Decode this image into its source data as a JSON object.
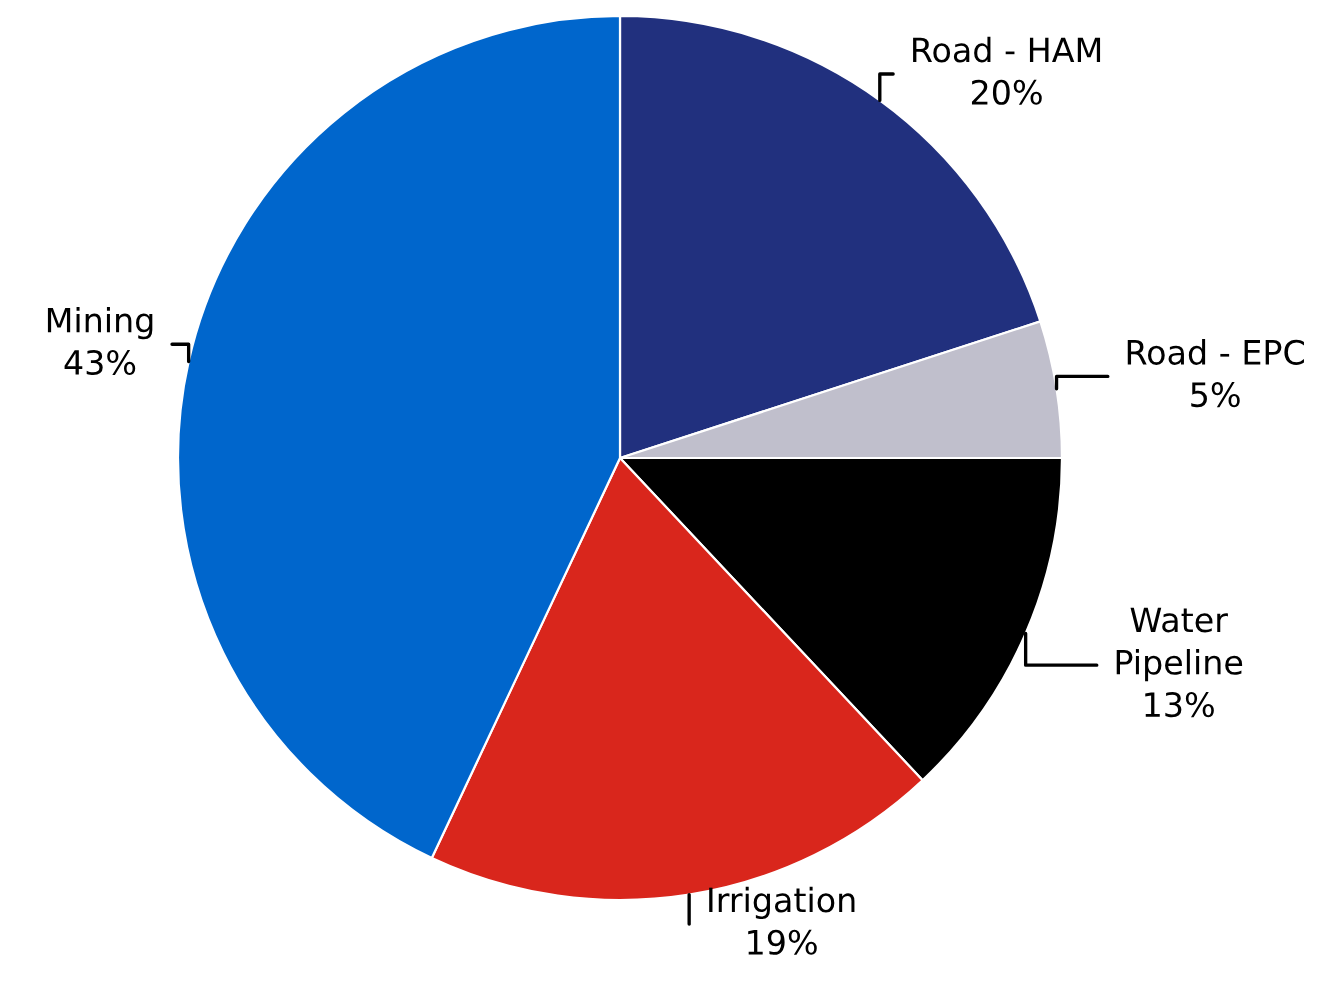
{
  "chart_data": {
    "type": "pie",
    "categories": [
      "Road - HAM",
      "Road - EPC",
      "Water\nPipeline",
      "Irrigation",
      "Mining"
    ],
    "values": [
      20,
      5,
      13,
      19,
      43
    ],
    "colors": [
      "#21307e",
      "#c0bfcc",
      "#000000",
      "#d9261c",
      "#0066cc"
    ],
    "value_labels": [
      "20%",
      "5%",
      "13%",
      "19%",
      "43%"
    ]
  }
}
